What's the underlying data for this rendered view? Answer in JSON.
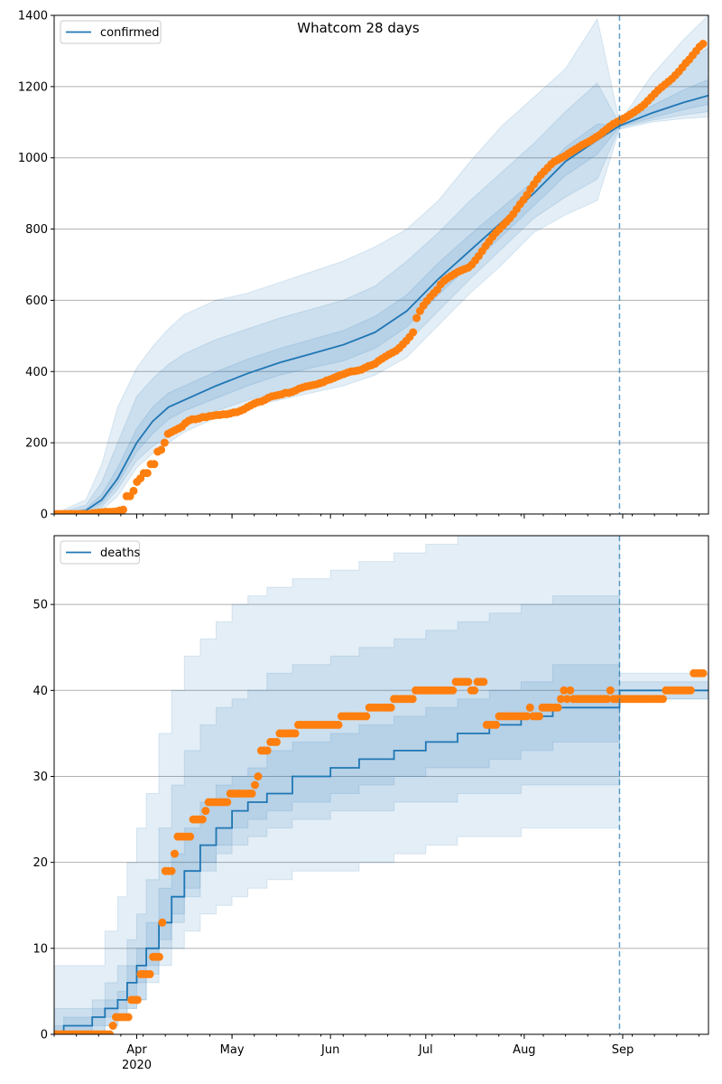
{
  "figure_title": "Whatcom 28 days",
  "colors": {
    "model": "#1f77b4",
    "observed": "#ff7f0e",
    "band": "#1f77b4",
    "grid": "#b0b0b0",
    "forecast_line": "#1f77b4"
  },
  "chart_data": [
    {
      "type": "line",
      "title": "Whatcom 28 days",
      "xlabel": "",
      "ylabel": "",
      "x_start": "2020-03-06",
      "x_end": "2020-09-28",
      "ylim": [
        0,
        1400
      ],
      "y_ticks": [
        0,
        200,
        400,
        600,
        800,
        1000,
        1200,
        1400
      ],
      "x_ticks": [
        "Apr",
        "May",
        "Jun",
        "Jul",
        "Aug",
        "Sep"
      ],
      "x_year_label": "2020",
      "grid": "horizontal",
      "legend": {
        "position": "top-left",
        "entries": [
          "confirmed"
        ]
      },
      "forecast_start": "2020-08-31",
      "series": [
        {
          "name": "confirmed",
          "kind": "model_line",
          "x": [
            "2020-03-06",
            "2020-03-16",
            "2020-03-21",
            "2020-03-26",
            "2020-04-01",
            "2020-04-06",
            "2020-04-11",
            "2020-04-16",
            "2020-04-26",
            "2020-05-06",
            "2020-05-16",
            "2020-05-26",
            "2020-06-05",
            "2020-06-15",
            "2020-06-25",
            "2020-07-05",
            "2020-07-15",
            "2020-07-25",
            "2020-08-04",
            "2020-08-14",
            "2020-08-24",
            "2020-08-31",
            "2020-09-10",
            "2020-09-20",
            "2020-09-28"
          ],
          "values": [
            0,
            10,
            40,
            100,
            200,
            260,
            300,
            320,
            360,
            395,
            425,
            450,
            475,
            510,
            570,
            660,
            740,
            820,
            900,
            990,
            1050,
            1090,
            1125,
            1155,
            1175
          ]
        },
        {
          "name": "",
          "kind": "observed_points",
          "values": [
            0,
            0,
            0,
            0,
            0,
            0,
            0,
            0,
            0,
            0,
            0,
            2,
            3,
            4,
            5,
            6,
            6,
            6,
            7,
            10,
            12,
            50,
            50,
            65,
            90,
            100,
            115,
            115,
            140,
            140,
            175,
            180,
            200,
            225,
            230,
            235,
            240,
            245,
            255,
            262,
            266,
            266,
            268,
            272,
            272,
            275,
            276,
            278,
            278,
            280,
            280,
            282,
            285,
            286,
            290,
            294,
            300,
            305,
            310,
            314,
            316,
            320,
            326,
            330,
            332,
            334,
            336,
            340,
            340,
            343,
            347,
            352,
            355,
            358,
            360,
            362,
            364,
            367,
            370,
            375,
            378,
            382,
            386,
            390,
            393,
            397,
            400,
            401,
            403,
            405,
            410,
            415,
            418,
            422,
            430,
            436,
            442,
            448,
            453,
            458,
            466,
            476,
            486,
            497,
            510,
            550,
            570,
            585,
            598,
            610,
            620,
            630,
            645,
            655,
            662,
            668,
            674,
            680,
            684,
            688,
            692,
            700,
            712,
            724,
            738,
            752,
            765,
            778,
            790,
            800,
            810,
            820,
            830,
            842,
            856,
            870,
            882,
            896,
            912,
            926,
            940,
            952,
            962,
            972,
            982,
            990,
            995,
            1000,
            1005,
            1012,
            1018,
            1024,
            1030,
            1036,
            1041,
            1046,
            1052,
            1058,
            1064,
            1072,
            1080,
            1088,
            1095,
            1100,
            1105,
            1110,
            1116,
            1122,
            1128,
            1135,
            1142,
            1150,
            1160,
            1170,
            1180,
            1190,
            1198,
            1206,
            1214,
            1222,
            1232,
            1242,
            1254,
            1266,
            1276,
            1288,
            1300,
            1312,
            1320
          ]
        }
      ],
      "bands": [
        {
          "name": "",
          "lower": [
            0,
            0,
            10,
            50,
            130,
            170,
            200,
            230,
            270,
            300,
            320,
            340,
            360,
            390,
            440,
            530,
            620,
            700,
            790,
            840,
            880,
            1080,
            1100,
            1110,
            1115
          ],
          "upper": [
            0,
            40,
            140,
            300,
            410,
            470,
            520,
            560,
            600,
            620,
            650,
            680,
            710,
            750,
            800,
            880,
            990,
            1090,
            1170,
            1250,
            1390,
            1100,
            1230,
            1330,
            1400
          ]
        },
        {
          "name": "",
          "lower": [
            0,
            2,
            20,
            70,
            150,
            190,
            220,
            250,
            290,
            320,
            345,
            365,
            385,
            420,
            480,
            570,
            660,
            745,
            830,
            890,
            940,
            1085,
            1105,
            1120,
            1130
          ],
          "upper": [
            0,
            25,
            90,
            200,
            330,
            380,
            420,
            450,
            490,
            520,
            550,
            575,
            600,
            640,
            710,
            790,
            880,
            960,
            1040,
            1130,
            1210,
            1095,
            1180,
            1260,
            1310
          ]
        },
        {
          "name": "",
          "lower": [
            0,
            5,
            30,
            85,
            175,
            225,
            265,
            290,
            325,
            360,
            390,
            410,
            430,
            465,
            525,
            615,
            700,
            780,
            865,
            950,
            1010,
            1088,
            1112,
            1135,
            1150
          ],
          "upper": [
            0,
            15,
            55,
            130,
            240,
            300,
            340,
            360,
            400,
            435,
            465,
            490,
            515,
            555,
            615,
            705,
            785,
            860,
            935,
            1030,
            1095,
            1092,
            1145,
            1190,
            1220
          ]
        }
      ]
    },
    {
      "type": "line",
      "title": "",
      "xlabel": "",
      "ylabel": "",
      "x_start": "2020-03-06",
      "x_end": "2020-09-28",
      "ylim": [
        0,
        58
      ],
      "y_ticks": [
        0,
        10,
        20,
        30,
        40,
        50
      ],
      "x_ticks": [
        "Apr",
        "May",
        "Jun",
        "Jul",
        "Aug",
        "Sep"
      ],
      "x_year_label": "2020",
      "grid": "horizontal",
      "legend": {
        "position": "top-left",
        "entries": [
          "deaths"
        ]
      },
      "forecast_start": "2020-08-31",
      "series": [
        {
          "name": "deaths",
          "kind": "model_step",
          "x": [
            "2020-03-06",
            "2020-03-09",
            "2020-03-18",
            "2020-03-22",
            "2020-03-26",
            "2020-03-29",
            "2020-04-01",
            "2020-04-04",
            "2020-04-08",
            "2020-04-12",
            "2020-04-16",
            "2020-04-21",
            "2020-04-26",
            "2020-05-01",
            "2020-05-06",
            "2020-05-12",
            "2020-05-20",
            "2020-06-01",
            "2020-06-10",
            "2020-06-21",
            "2020-07-01",
            "2020-07-11",
            "2020-07-21",
            "2020-07-31",
            "2020-08-10",
            "2020-08-31",
            "2020-09-28"
          ],
          "values": [
            0,
            1,
            2,
            3,
            4,
            6,
            8,
            10,
            13,
            16,
            19,
            22,
            24,
            26,
            27,
            28,
            30,
            31,
            32,
            33,
            34,
            35,
            36,
            37,
            38,
            40,
            40
          ]
        },
        {
          "name": "",
          "kind": "observed_points",
          "values": [
            0,
            0,
            0,
            0,
            0,
            0,
            0,
            0,
            0,
            0,
            0,
            0,
            0,
            0,
            0,
            0,
            0,
            0,
            0,
            1,
            2,
            2,
            2,
            2,
            2,
            4,
            4,
            4,
            7,
            7,
            7,
            7,
            9,
            9,
            9,
            13,
            19,
            19,
            19,
            21,
            23,
            23,
            23,
            23,
            23,
            25,
            25,
            25,
            25,
            26,
            27,
            27,
            27,
            27,
            27,
            27,
            27,
            28,
            28,
            28,
            28,
            28,
            28,
            28,
            28,
            29,
            30,
            33,
            33,
            33,
            34,
            34,
            34,
            35,
            35,
            35,
            35,
            35,
            35,
            36,
            36,
            36,
            36,
            36,
            36,
            36,
            36,
            36,
            36,
            36,
            36,
            36,
            36,
            37,
            37,
            37,
            37,
            37,
            37,
            37,
            37,
            37,
            38,
            38,
            38,
            38,
            38,
            38,
            38,
            38,
            39,
            39,
            39,
            39,
            39,
            39,
            39,
            40,
            40,
            40,
            40,
            40,
            40,
            40,
            40,
            40,
            40,
            40,
            40,
            40,
            41,
            41,
            41,
            41,
            41,
            40,
            40,
            41,
            41,
            41,
            36,
            36,
            36,
            36,
            37,
            37,
            37,
            37,
            37,
            37,
            37,
            37,
            37,
            37,
            38,
            37,
            37,
            37,
            38,
            38,
            38,
            38,
            38,
            38,
            39,
            40,
            39,
            40,
            39,
            39,
            39,
            39,
            39,
            39,
            39,
            39,
            39,
            39,
            39,
            39,
            40,
            39,
            39,
            39,
            39,
            39,
            39,
            39,
            39,
            39,
            39,
            39,
            39,
            39,
            39,
            39,
            39,
            39,
            40,
            40,
            40,
            40,
            40,
            40,
            40,
            40,
            40,
            42,
            42,
            42,
            42
          ]
        }
      ],
      "bands": [
        {
          "name": "",
          "lower": [
            0,
            0,
            0,
            1,
            2,
            3,
            4,
            6,
            8,
            10,
            12,
            14,
            15,
            16,
            17,
            18,
            19,
            19,
            20,
            21,
            22,
            23,
            23,
            24,
            24,
            39,
            39
          ],
          "upper": [
            8,
            8,
            8,
            12,
            16,
            20,
            24,
            28,
            35,
            40,
            44,
            46,
            48,
            50,
            51,
            52,
            53,
            54,
            55,
            56,
            57,
            58,
            58,
            58,
            58,
            42,
            44
          ]
        },
        {
          "name": "",
          "lower": [
            0,
            0,
            0,
            1,
            2,
            3,
            4,
            7,
            10,
            13,
            16,
            19,
            21,
            22,
            23,
            24,
            25,
            26,
            26,
            27,
            27,
            28,
            28,
            29,
            29,
            39,
            39
          ],
          "upper": [
            3,
            3,
            4,
            6,
            8,
            11,
            14,
            18,
            24,
            29,
            33,
            36,
            38,
            39,
            40,
            42,
            43,
            44,
            45,
            46,
            47,
            48,
            49,
            50,
            51,
            41,
            42
          ]
        },
        {
          "name": "",
          "lower": [
            0,
            0,
            1,
            2,
            3,
            4,
            6,
            8,
            11,
            14,
            17,
            20,
            22,
            24,
            25,
            26,
            27,
            28,
            29,
            30,
            31,
            31,
            32,
            33,
            34,
            40,
            40
          ],
          "upper": [
            1,
            2,
            3,
            4,
            5,
            8,
            10,
            13,
            17,
            21,
            24,
            27,
            29,
            30,
            31,
            33,
            34,
            35,
            36,
            37,
            38,
            39,
            40,
            41,
            43,
            40,
            41
          ]
        }
      ]
    }
  ]
}
